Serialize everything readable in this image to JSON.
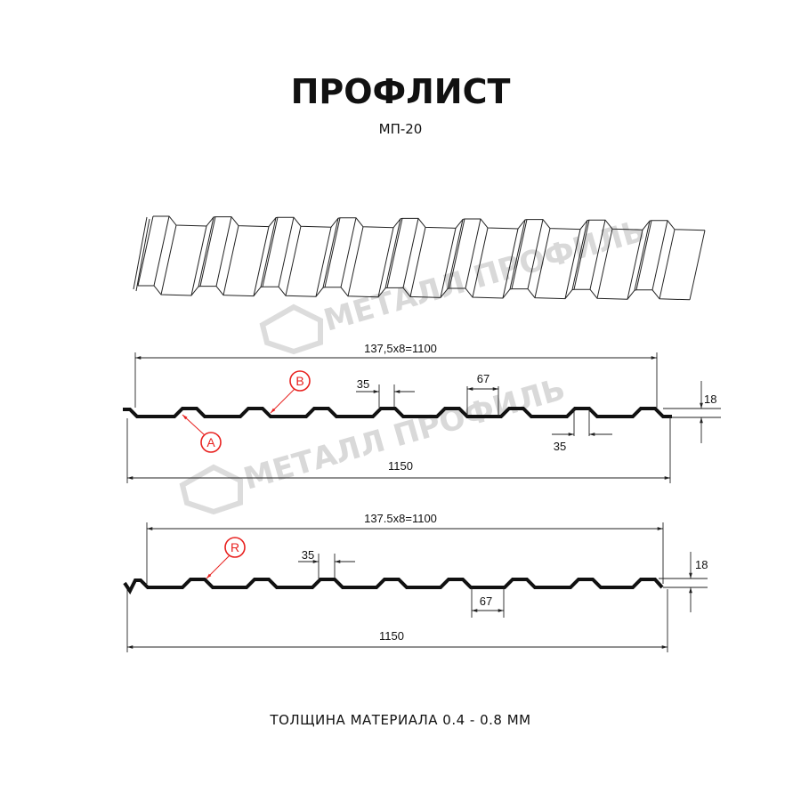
{
  "header": {
    "title": "ПРОФЛИСТ",
    "subtitle": "МП-20"
  },
  "watermark": {
    "text": "МЕТАЛЛ ПРОФИЛЬ",
    "color": "#d9d9d9"
  },
  "profile_1": {
    "pitch_dimension": "137,5x8=1100",
    "total_width": "1150",
    "crest_width": "35",
    "valley_width": "67",
    "bottom_crest_width": "35",
    "height": "18",
    "marker_a": "A",
    "marker_b": "B"
  },
  "profile_2": {
    "pitch_dimension": "137.5x8=1100",
    "total_width": "1150",
    "crest_width": "35",
    "valley_width": "67",
    "height": "18",
    "marker_r": "R"
  },
  "footer": {
    "thickness": "ТОЛЩИНА МАТЕРИАЛА 0.4 - 0.8 ММ"
  },
  "colors": {
    "marker": "#e8211f",
    "line": "#111111"
  }
}
